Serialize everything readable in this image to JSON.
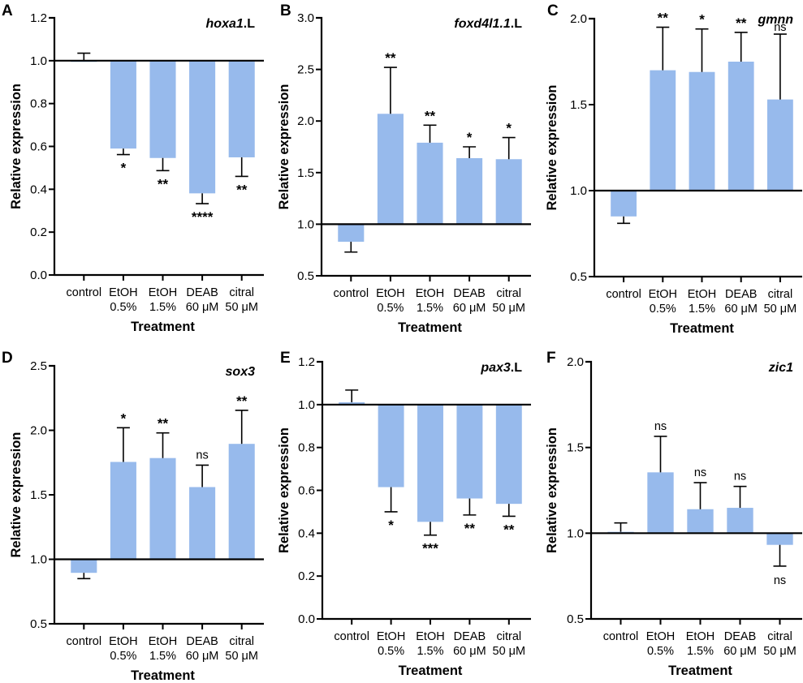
{
  "chart_data": [
    {
      "type": "bar",
      "panel": "A",
      "title_italic": "hoxa1",
      "title_suffix": ".L",
      "xlabel": "Treatment",
      "ylabel": "Relative expression",
      "ylim": [
        0.0,
        1.2
      ],
      "yticks": [
        0.0,
        0.2,
        0.4,
        0.6,
        0.8,
        1.0,
        1.2
      ],
      "ytick_labels": [
        "0.0",
        "0.2",
        "0.4",
        "0.6",
        "0.8",
        "1.0",
        "1.2"
      ],
      "baseline": 1.0,
      "categories": [
        [
          "control",
          ""
        ],
        [
          "EtOH",
          "0.5%"
        ],
        [
          "EtOH",
          "1.5%"
        ],
        [
          "DEAB",
          "60 μM"
        ],
        [
          "citral",
          "50 μM"
        ]
      ],
      "values": [
        1.0,
        0.59,
        0.546,
        0.381,
        0.549
      ],
      "error_ends": [
        1.035,
        0.562,
        0.487,
        0.333,
        0.46
      ],
      "significance": [
        "",
        "*",
        "**",
        "****",
        "**"
      ]
    },
    {
      "type": "bar",
      "panel": "B",
      "title_italic": "foxd4l1.1",
      "title_suffix": ".L",
      "xlabel": "Treatment",
      "ylabel": "Relative expression",
      "ylim": [
        0.5,
        3.0
      ],
      "yticks": [
        0.5,
        1.0,
        1.5,
        2.0,
        2.5,
        3.0
      ],
      "ytick_labels": [
        "0.5",
        "1.0",
        "1.5",
        "2.0",
        "2.5",
        "3.0"
      ],
      "baseline": 1.0,
      "categories": [
        [
          "control",
          ""
        ],
        [
          "EtOH",
          "0.5%"
        ],
        [
          "EtOH",
          "1.5%"
        ],
        [
          "DEAB",
          "60 μM"
        ],
        [
          "citral",
          "50 μM"
        ]
      ],
      "values": [
        0.83,
        2.07,
        1.79,
        1.64,
        1.63
      ],
      "error_ends": [
        0.73,
        2.52,
        1.96,
        1.75,
        1.84
      ],
      "significance": [
        "",
        "**",
        "**",
        "*",
        "*"
      ]
    },
    {
      "type": "bar",
      "panel": "C",
      "title_italic": "gmnn",
      "title_suffix": "",
      "xlabel": "Treatment",
      "ylabel": "Relative expression",
      "ylim": [
        0.5,
        2.0
      ],
      "yticks": [
        0.5,
        1.0,
        1.5,
        2.0
      ],
      "ytick_labels": [
        "0.5",
        "1.0",
        "1.5",
        "2.0"
      ],
      "baseline": 1.0,
      "categories": [
        [
          "control",
          ""
        ],
        [
          "EtOH",
          "0.5%"
        ],
        [
          "EtOH",
          "1.5%"
        ],
        [
          "DEAB",
          "60 μM"
        ],
        [
          "citral",
          "50 μM"
        ]
      ],
      "values": [
        0.85,
        1.7,
        1.69,
        1.75,
        1.53
      ],
      "error_ends": [
        0.81,
        1.95,
        1.94,
        1.92,
        1.91
      ],
      "significance": [
        "",
        "**",
        "*",
        "**",
        "ns"
      ]
    },
    {
      "type": "bar",
      "panel": "D",
      "title_italic": "sox3",
      "title_suffix": "",
      "xlabel": "Treatment",
      "ylabel": "Relative expression",
      "ylim": [
        0.5,
        2.5
      ],
      "yticks": [
        0.5,
        1.0,
        1.5,
        2.0,
        2.5
      ],
      "ytick_labels": [
        "0.5",
        "1.0",
        "1.5",
        "2.0",
        "2.5"
      ],
      "baseline": 1.0,
      "categories": [
        [
          "control",
          ""
        ],
        [
          "EtOH",
          "0.5%"
        ],
        [
          "EtOH",
          "1.5%"
        ],
        [
          "DEAB",
          "60 μM"
        ],
        [
          "citral",
          "50 μM"
        ]
      ],
      "values": [
        0.895,
        1.755,
        1.785,
        1.56,
        1.895
      ],
      "error_ends": [
        0.85,
        2.02,
        1.98,
        1.73,
        2.155
      ],
      "significance": [
        "",
        "*",
        "**",
        "ns",
        "**"
      ]
    },
    {
      "type": "bar",
      "panel": "E",
      "title_italic": "pax3",
      "title_suffix": ".L",
      "xlabel": "Treatment",
      "ylabel": "Relative expression",
      "ylim": [
        0.0,
        1.2
      ],
      "yticks": [
        0.0,
        0.2,
        0.4,
        0.6,
        0.8,
        1.0,
        1.2
      ],
      "ytick_labels": [
        "0.0",
        "0.2",
        "0.4",
        "0.6",
        "0.8",
        "1.0",
        "1.2"
      ],
      "baseline": 1.0,
      "categories": [
        [
          "control",
          ""
        ],
        [
          "EtOH",
          "0.5%"
        ],
        [
          "EtOH",
          "1.5%"
        ],
        [
          "DEAB",
          "60 μM"
        ],
        [
          "citral",
          "50 μM"
        ]
      ],
      "values": [
        1.011,
        0.615,
        0.453,
        0.562,
        0.537
      ],
      "error_ends": [
        1.068,
        0.5,
        0.391,
        0.485,
        0.479
      ],
      "significance": [
        "",
        "*",
        "***",
        "**",
        "**"
      ]
    },
    {
      "type": "bar",
      "panel": "F",
      "title_italic": "zic1",
      "title_suffix": "",
      "xlabel": "Treatment",
      "ylabel": "Relative expression",
      "ylim": [
        0.5,
        2.0
      ],
      "yticks": [
        0.5,
        1.0,
        1.5,
        2.0
      ],
      "ytick_labels": [
        "0.5",
        "1.0",
        "1.5",
        "2.0"
      ],
      "baseline": 1.0,
      "categories": [
        [
          "control",
          ""
        ],
        [
          "EtOH",
          "0.5%"
        ],
        [
          "EtOH",
          "1.5%"
        ],
        [
          "DEAB",
          "60 μM"
        ],
        [
          "citral",
          "50 μM"
        ]
      ],
      "values": [
        1.008,
        1.355,
        1.14,
        1.148,
        0.932
      ],
      "error_ends": [
        1.06,
        1.565,
        1.295,
        1.273,
        0.808
      ],
      "significance": [
        "",
        "ns",
        "ns",
        "ns",
        "ns"
      ]
    }
  ],
  "colors": {
    "bar": "#97baec",
    "axis": "#000000"
  }
}
